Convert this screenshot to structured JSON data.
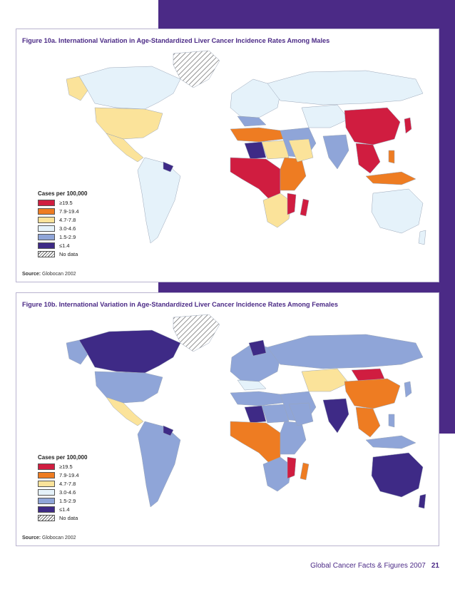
{
  "figures": [
    {
      "title": "Figure 10a. International Variation in Age-Standardized Liver Cancer Incidence Rates Among Males",
      "legend_title": "Cases per 100,000",
      "legend": [
        {
          "label": "≥19.5",
          "color": "#d01d40"
        },
        {
          "label": "7.9-19.4",
          "color": "#ee7c22"
        },
        {
          "label": "4.7-7.8",
          "color": "#fbe39a"
        },
        {
          "label": "3.0-4.6",
          "color": "#e5f2fa"
        },
        {
          "label": "1.5-2.9",
          "color": "#8fa5d8"
        },
        {
          "label": "≤1.4",
          "color": "#3e2a86"
        },
        {
          "label": "No data",
          "color": "hatch"
        }
      ],
      "source_label": "Source:",
      "source_text": " Globocan 2002"
    },
    {
      "title": "Figure 10b. International Variation in Age-Standardized Liver Cancer Incidence Rates Among Females",
      "legend_title": "Cases per 100,000",
      "legend": [
        {
          "label": "≥19.5",
          "color": "#d01d40"
        },
        {
          "label": "7.9-19.4",
          "color": "#ee7c22"
        },
        {
          "label": "4.7-7.8",
          "color": "#fbe39a"
        },
        {
          "label": "3.0-4.6",
          "color": "#e5f2fa"
        },
        {
          "label": "1.5-2.9",
          "color": "#8fa5d8"
        },
        {
          "label": "≤1.4",
          "color": "#3e2a86"
        },
        {
          "label": "No data",
          "color": "hatch"
        }
      ],
      "source_label": "Source:",
      "source_text": " Globocan 2002"
    }
  ],
  "footer": {
    "title": "Global Cancer Facts & Figures 2007",
    "page": "21"
  }
}
